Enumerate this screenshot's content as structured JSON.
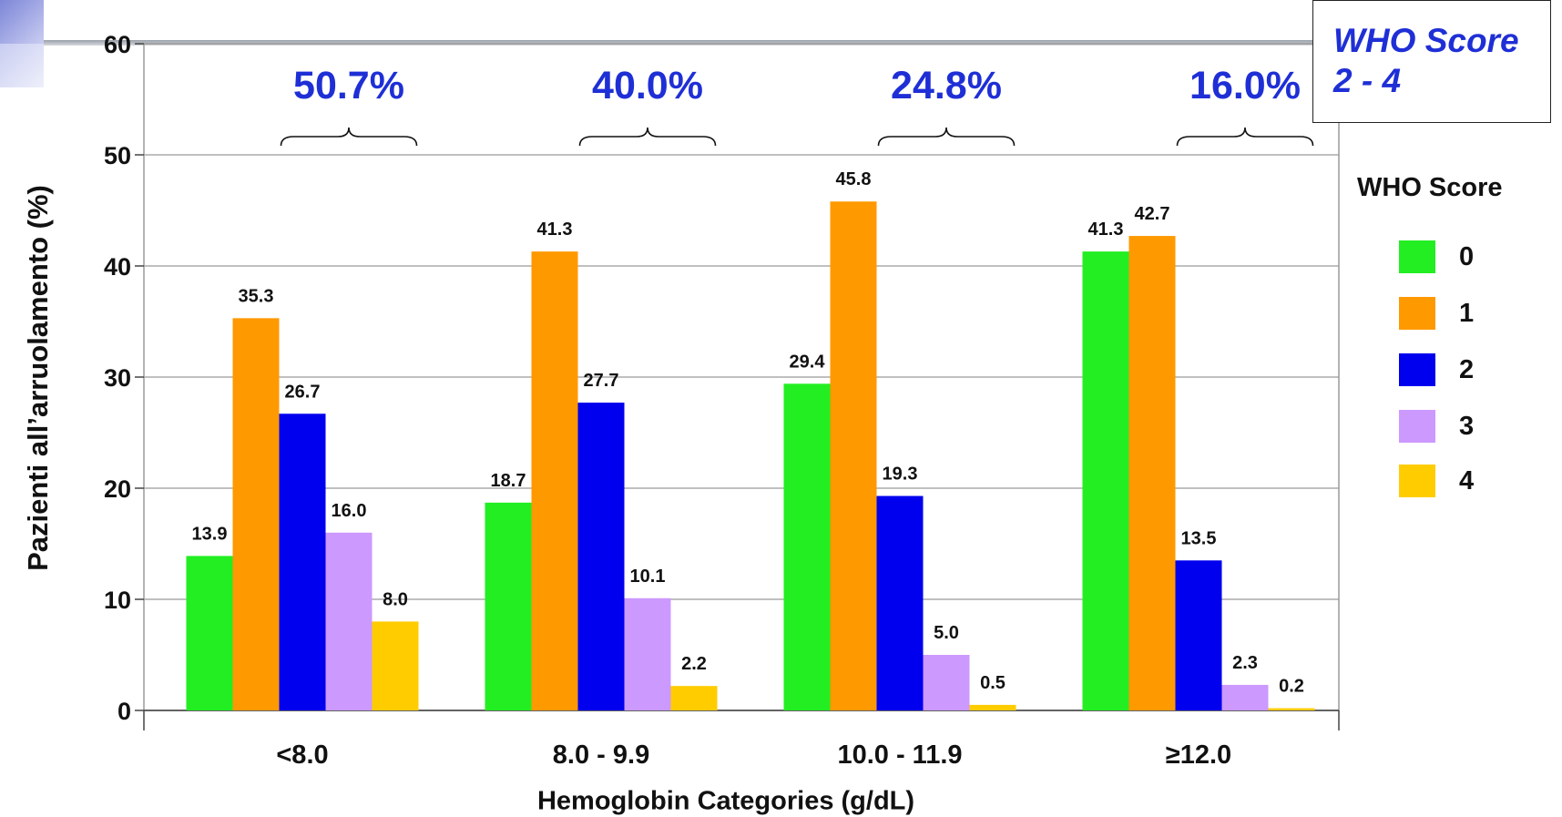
{
  "chart_data": {
    "type": "bar",
    "ylabel": "Pazienti all’arruolamento (%)",
    "xlabel": "Hemoglobin Categories (g/dL)",
    "ylim": [
      0,
      60
    ],
    "yticks": [
      0,
      10,
      20,
      30,
      40,
      50,
      60
    ],
    "grid": true,
    "categories": [
      "<8.0",
      "8.0 - 9.9",
      "10.0 - 11.9",
      "≥12.0"
    ],
    "legend_title": "WHO Score",
    "legend_position": "right",
    "series": [
      {
        "name": "0",
        "color": "#22ee22",
        "values": [
          13.9,
          18.7,
          29.4,
          41.3
        ]
      },
      {
        "name": "1",
        "color": "#ff9900",
        "values": [
          35.3,
          41.3,
          45.8,
          42.7
        ]
      },
      {
        "name": "2",
        "color": "#0000ee",
        "values": [
          26.7,
          27.7,
          19.3,
          13.5
        ]
      },
      {
        "name": "3",
        "color": "#cc99ff",
        "values": [
          16.0,
          10.1,
          5.0,
          2.3
        ]
      },
      {
        "name": "4",
        "color": "#ffcc00",
        "values": [
          8.0,
          2.2,
          0.5,
          0.2
        ]
      }
    ],
    "group_annotations": [
      "50.7%",
      "40.0%",
      "24.8%",
      "16.0%"
    ],
    "annotation_color": "#1f2fd6",
    "callout_lines": [
      "WHO Score",
      "2 - 4"
    ]
  }
}
